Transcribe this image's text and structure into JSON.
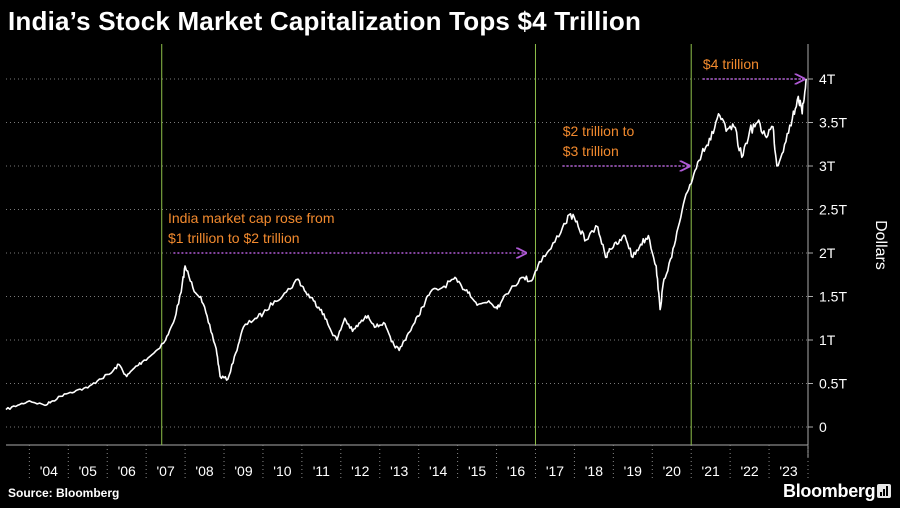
{
  "header": {
    "title": "India’s Stock Market Capitalization Tops $4 Trillion"
  },
  "footer": {
    "source": "Source: Bloomberg",
    "brand": "Bloomberg"
  },
  "colors": {
    "background": "#000000",
    "line": "#ffffff",
    "annotation_text": "#f28a2e",
    "annotation_arrow": "#b05ad6",
    "marker_line": "#8fc04a",
    "grid": "#7a7a7a"
  },
  "chart_data": {
    "type": "line",
    "title": "India’s Stock Market Capitalization Tops $4 Trillion",
    "xlabel": "",
    "ylabel": "Dollars",
    "y_axis_side": "right",
    "grid": "horizontal dotted",
    "ylim": [
      0,
      4.15
    ],
    "xlim": [
      2003.4,
      2024.0
    ],
    "yticks": [
      0,
      0.5,
      1,
      1.5,
      2,
      2.5,
      3,
      3.5,
      4
    ],
    "ytick_labels": [
      "0",
      "0.5T",
      "1T",
      "1.5T",
      "2T",
      "2.5T",
      "3T",
      "3.5T",
      "4T"
    ],
    "xtick_labels": [
      "'04",
      "'05",
      "'06",
      "'07",
      "'08",
      "'09",
      "'10",
      "'11",
      "'12",
      "'13",
      "'14",
      "'15",
      "'16",
      "'17",
      "'18",
      "'19",
      "'20",
      "'21",
      "'22",
      "'23"
    ],
    "series": [
      {
        "values_unit": "trillion USD",
        "x": [
          2003.4,
          2003.7,
          2004.0,
          2004.4,
          2004.6,
          2004.9,
          2005.2,
          2005.5,
          2005.8,
          2006.1,
          2006.3,
          2006.5,
          2006.7,
          2006.9,
          2007.2,
          2007.5,
          2007.7,
          2007.9,
          2008.0,
          2008.2,
          2008.4,
          2008.6,
          2008.8,
          2008.9,
          2009.1,
          2009.3,
          2009.5,
          2009.8,
          2010.0,
          2010.3,
          2010.6,
          2010.9,
          2011.1,
          2011.3,
          2011.5,
          2011.7,
          2011.9,
          2012.1,
          2012.3,
          2012.5,
          2012.7,
          2012.9,
          2013.1,
          2013.3,
          2013.5,
          2013.7,
          2013.9,
          2014.1,
          2014.3,
          2014.6,
          2014.9,
          2015.1,
          2015.3,
          2015.5,
          2015.8,
          2016.0,
          2016.1,
          2016.4,
          2016.7,
          2016.9,
          2017.1,
          2017.4,
          2017.7,
          2017.9,
          2018.1,
          2018.3,
          2018.6,
          2018.8,
          2018.9,
          2019.1,
          2019.3,
          2019.5,
          2019.7,
          2019.9,
          2020.1,
          2020.2,
          2020.3,
          2020.5,
          2020.7,
          2020.9,
          2021.1,
          2021.3,
          2021.5,
          2021.7,
          2021.9,
          2022.1,
          2022.3,
          2022.5,
          2022.7,
          2022.9,
          2023.1,
          2023.2,
          2023.4,
          2023.6,
          2023.75,
          2023.85,
          2023.95
        ],
        "values": [
          0.2,
          0.25,
          0.3,
          0.25,
          0.3,
          0.38,
          0.42,
          0.45,
          0.55,
          0.62,
          0.72,
          0.58,
          0.68,
          0.75,
          0.85,
          1.0,
          1.2,
          1.55,
          1.85,
          1.6,
          1.5,
          1.2,
          0.9,
          0.58,
          0.55,
          0.85,
          1.15,
          1.25,
          1.3,
          1.45,
          1.55,
          1.7,
          1.55,
          1.45,
          1.35,
          1.15,
          1.0,
          1.25,
          1.1,
          1.2,
          1.28,
          1.15,
          1.2,
          0.98,
          0.88,
          1.05,
          1.2,
          1.38,
          1.55,
          1.6,
          1.7,
          1.62,
          1.55,
          1.4,
          1.45,
          1.38,
          1.42,
          1.62,
          1.72,
          1.68,
          1.9,
          2.05,
          2.3,
          2.45,
          2.3,
          2.15,
          2.3,
          1.95,
          2.05,
          2.1,
          2.2,
          1.95,
          2.1,
          2.2,
          1.85,
          1.35,
          1.7,
          1.95,
          2.35,
          2.7,
          2.95,
          3.2,
          3.3,
          3.6,
          3.4,
          3.45,
          3.1,
          3.4,
          3.5,
          3.35,
          3.45,
          3.0,
          3.25,
          3.55,
          3.8,
          3.6,
          4.0
        ]
      }
    ],
    "reference_lines_x": [
      2007.4,
      2017.0,
      2021.0
    ],
    "annotations": [
      {
        "text_lines": [
          "India market cap rose from",
          "$1 trillion to $2 trillion"
        ],
        "arrow_from": [
          2007.7,
          2.0
        ],
        "arrow_to": [
          2016.8,
          2.0
        ]
      },
      {
        "text_lines": [
          "$2 trillion to",
          "$3 trillion"
        ],
        "arrow_from": [
          2017.7,
          3.0
        ],
        "arrow_to": [
          2021.0,
          3.0
        ]
      },
      {
        "text_lines": [
          "$4 trillion"
        ],
        "arrow_from": [
          2021.3,
          4.0
        ],
        "arrow_to": [
          2023.95,
          4.0
        ]
      }
    ]
  }
}
